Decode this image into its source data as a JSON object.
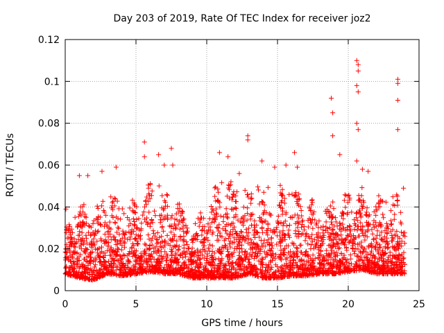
{
  "chart_data": {
    "type": "scatter",
    "title": "Day 203 of 2019, Rate Of TEC Index for receiver joz2",
    "xlabel": "GPS time / hours",
    "ylabel": "ROTI / TECUs",
    "xlim": [
      0,
      25
    ],
    "ylim": [
      0,
      0.12
    ],
    "xticks": [
      0,
      5,
      10,
      15,
      20,
      25
    ],
    "yticks": [
      0,
      0.02,
      0.04,
      0.06,
      0.08,
      0.1,
      0.12
    ],
    "xtick_labels": [
      "0",
      "5",
      "10",
      "15",
      "20",
      "25"
    ],
    "ytick_labels": [
      "0",
      "0.02",
      "0.04",
      "0.06",
      "0.08",
      "0.1",
      "0.12"
    ],
    "grid": true,
    "marker": "+",
    "color": "#ff0000",
    "series": [
      {
        "name": "ROTI",
        "note": "dense point cloud 0–24 h, bulk 0.005–0.05 TECU",
        "outliers": [
          [
            0.05,
            0.039
          ],
          [
            1.0,
            0.055
          ],
          [
            1.6,
            0.055
          ],
          [
            2.6,
            0.057
          ],
          [
            3.6,
            0.059
          ],
          [
            5.6,
            0.071
          ],
          [
            5.6,
            0.064
          ],
          [
            6.6,
            0.065
          ],
          [
            7.0,
            0.06
          ],
          [
            7.5,
            0.068
          ],
          [
            7.6,
            0.06
          ],
          [
            10.9,
            0.066
          ],
          [
            11.5,
            0.064
          ],
          [
            12.3,
            0.056
          ],
          [
            12.9,
            0.074
          ],
          [
            12.9,
            0.072
          ],
          [
            13.9,
            0.062
          ],
          [
            14.8,
            0.059
          ],
          [
            15.6,
            0.06
          ],
          [
            16.2,
            0.066
          ],
          [
            16.4,
            0.059
          ],
          [
            18.8,
            0.092
          ],
          [
            18.9,
            0.085
          ],
          [
            18.9,
            0.074
          ],
          [
            19.4,
            0.065
          ],
          [
            20.6,
            0.11
          ],
          [
            20.7,
            0.108
          ],
          [
            20.7,
            0.105
          ],
          [
            20.6,
            0.098
          ],
          [
            20.7,
            0.095
          ],
          [
            20.6,
            0.08
          ],
          [
            20.7,
            0.077
          ],
          [
            20.6,
            0.062
          ],
          [
            21.0,
            0.058
          ],
          [
            21.4,
            0.057
          ],
          [
            23.5,
            0.101
          ],
          [
            23.5,
            0.099
          ],
          [
            23.5,
            0.091
          ],
          [
            23.5,
            0.077
          ],
          [
            23.9,
            0.049
          ]
        ],
        "envelope": [
          [
            0.0,
            0.008,
            0.03
          ],
          [
            1.0,
            0.006,
            0.042
          ],
          [
            2.0,
            0.005,
            0.045
          ],
          [
            3.0,
            0.008,
            0.048
          ],
          [
            4.0,
            0.007,
            0.043
          ],
          [
            5.0,
            0.008,
            0.046
          ],
          [
            6.0,
            0.009,
            0.052
          ],
          [
            7.0,
            0.008,
            0.05
          ],
          [
            8.0,
            0.008,
            0.045
          ],
          [
            9.0,
            0.006,
            0.032
          ],
          [
            10.0,
            0.006,
            0.045
          ],
          [
            11.0,
            0.006,
            0.055
          ],
          [
            12.0,
            0.006,
            0.052
          ],
          [
            13.0,
            0.008,
            0.052
          ],
          [
            14.0,
            0.006,
            0.05
          ],
          [
            15.0,
            0.006,
            0.052
          ],
          [
            16.0,
            0.007,
            0.05
          ],
          [
            17.0,
            0.007,
            0.046
          ],
          [
            18.0,
            0.008,
            0.044
          ],
          [
            19.0,
            0.008,
            0.045
          ],
          [
            20.0,
            0.009,
            0.048
          ],
          [
            21.0,
            0.01,
            0.053
          ],
          [
            22.0,
            0.008,
            0.046
          ],
          [
            23.0,
            0.008,
            0.046
          ],
          [
            24.0,
            0.008,
            0.046
          ]
        ]
      }
    ]
  }
}
